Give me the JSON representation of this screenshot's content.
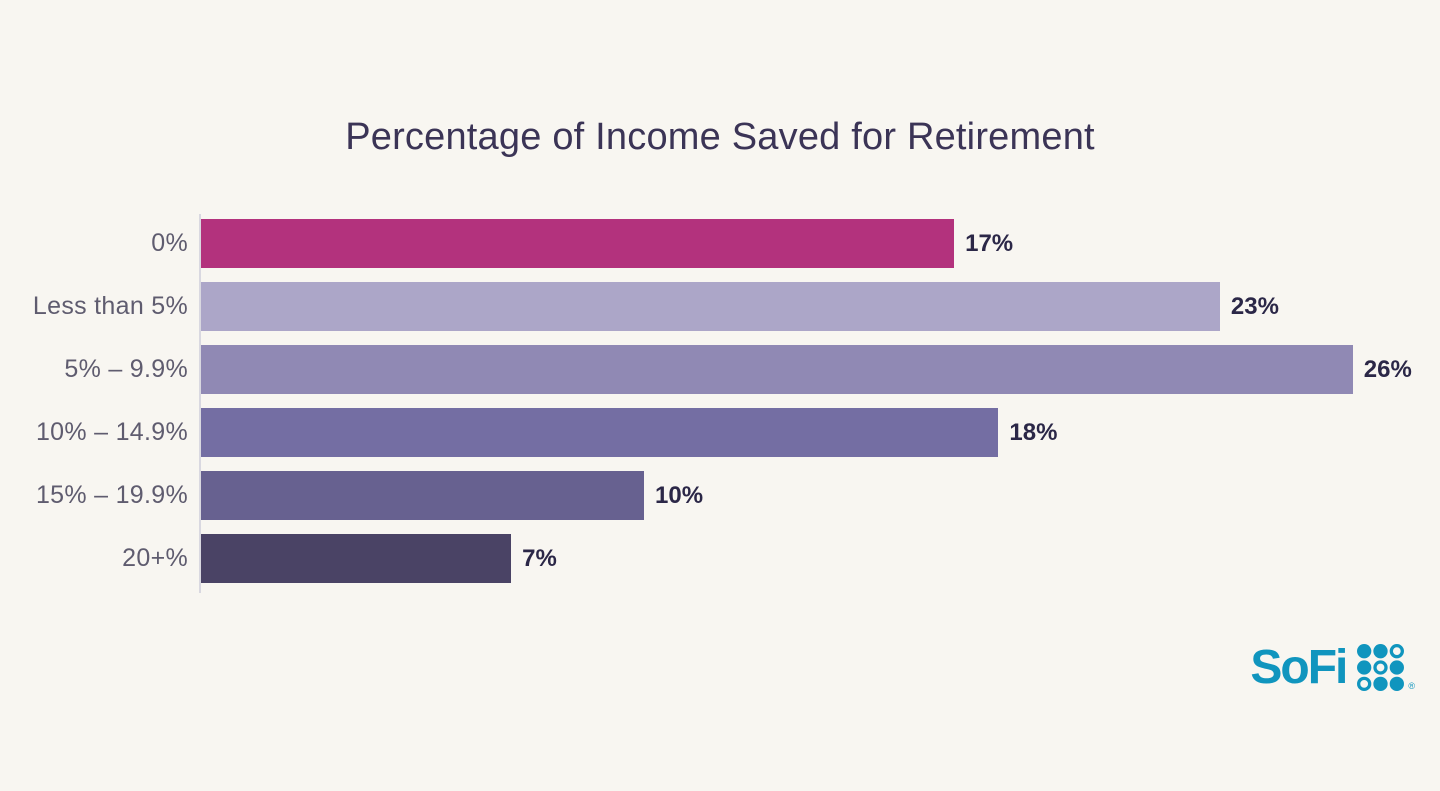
{
  "page": {
    "background_color": "#f8f6f1"
  },
  "chart_data": {
    "type": "bar",
    "orientation": "horizontal",
    "title": "Percentage of Income Saved for Retirement",
    "categories": [
      "0%",
      "Less than 5%",
      "5% – 9.9%",
      "10% – 14.9%",
      "15% – 19.9%",
      "20+%"
    ],
    "values": [
      17,
      23,
      26,
      18,
      10,
      7
    ],
    "value_labels": [
      "17%",
      "23%",
      "26%",
      "18%",
      "10%",
      "7%"
    ],
    "bar_colors": [
      "#b3327d",
      "#aca6c8",
      "#9089b4",
      "#746ea3",
      "#676190",
      "#4a4365"
    ],
    "xlabel": "",
    "ylabel": "",
    "xlim": [
      0,
      28
    ],
    "grid": false,
    "legend": false,
    "title_color": "#3b3456",
    "category_label_color": "#5f5c6f",
    "value_label_color": "#2b2747",
    "axis_line_color": "#d9d8e0"
  },
  "branding": {
    "logo_text": "SoFi",
    "logo_color": "#1095be",
    "registered_mark": "®",
    "dot_grid_pattern": [
      [
        "filled",
        "filled",
        "outline"
      ],
      [
        "filled",
        "outline",
        "filled"
      ],
      [
        "outline",
        "filled",
        "filled"
      ]
    ]
  }
}
